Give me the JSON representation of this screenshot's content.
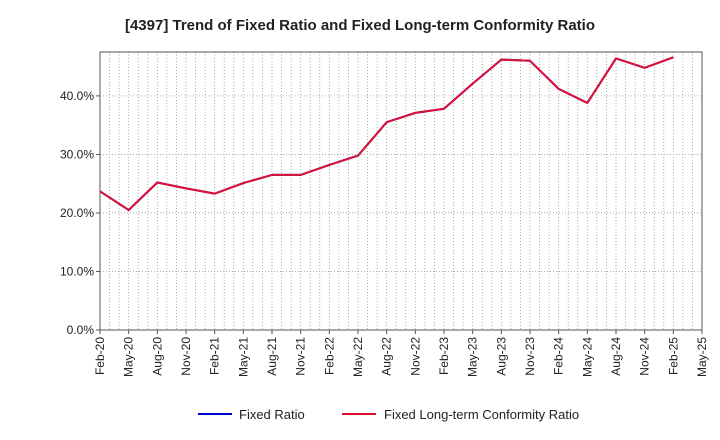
{
  "chart_data": {
    "type": "line",
    "title": "[4397]  Trend of Fixed Ratio and Fixed Long-term Conformity Ratio",
    "xlabel": "",
    "ylabel": "",
    "ylim": [
      0,
      47.5
    ],
    "y_ticks": [
      0,
      10,
      20,
      30,
      40
    ],
    "y_tick_labels": [
      "0.0%",
      "10.0%",
      "20.0%",
      "30.0%",
      "40.0%"
    ],
    "x": [
      "Feb-20",
      "May-20",
      "Aug-20",
      "Nov-20",
      "Feb-21",
      "May-21",
      "Aug-21",
      "Nov-21",
      "Feb-22",
      "May-22",
      "Aug-22",
      "Nov-22",
      "Feb-23",
      "May-23",
      "Aug-23",
      "Nov-23",
      "Feb-24",
      "May-24",
      "Aug-24",
      "Nov-24",
      "Feb-25",
      "May-25"
    ],
    "grid": "vertical-dotted-monthly, horizontal-dotted",
    "legend_position": "bottom",
    "series": [
      {
        "name": "Fixed Ratio",
        "color": "#0000cc",
        "values": [
          23.7,
          20.5,
          25.2,
          24.2,
          23.3,
          25.1,
          26.5,
          26.5,
          28.2,
          29.8,
          35.5,
          37.1,
          37.8,
          42.1,
          46.2,
          46.0,
          41.2,
          38.8,
          46.4,
          44.8,
          46.6,
          null
        ]
      },
      {
        "name": "Fixed Long-term Conformity Ratio",
        "color": "#dd1133",
        "values": [
          23.7,
          20.5,
          25.2,
          24.2,
          23.3,
          25.1,
          26.5,
          26.5,
          28.2,
          29.8,
          35.5,
          37.1,
          37.8,
          42.1,
          46.2,
          46.0,
          41.2,
          38.8,
          46.4,
          44.8,
          46.6,
          null
        ]
      }
    ]
  }
}
